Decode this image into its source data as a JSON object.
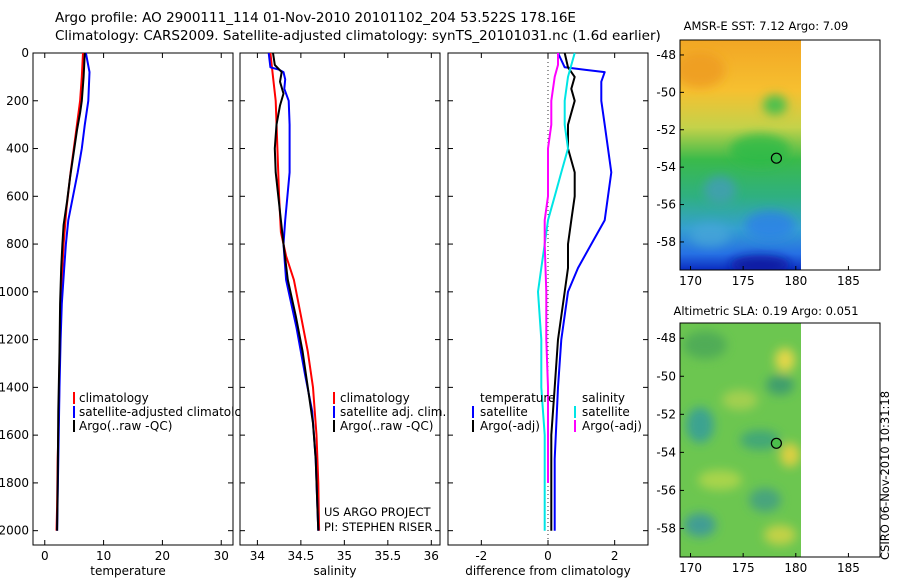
{
  "header": {
    "line1": "Argo profile: AO 2900111_114 01-Nov-2010 20101102_204 53.522S 178.16E",
    "line2": "Climatology: CARS2009. Satellite-adjusted climatology: synTS_20101031.nc (1.6d earlier)"
  },
  "credit": {
    "project": "US ARGO PROJECT",
    "pi": "PI: STEPHEN RISER"
  },
  "footer_stamp": "CSIRO 06-Nov-2010 10:31:18",
  "colors": {
    "red": "#ff0000",
    "blue": "#0000ff",
    "black": "#000000",
    "cyan": "#00e5e5",
    "magenta": "#ff00ff"
  },
  "chart_data": [
    {
      "id": "temperature",
      "type": "line",
      "xlabel": "temperature",
      "xlim": [
        -2,
        32
      ],
      "ylim": [
        2060,
        0
      ],
      "xticks": [
        0,
        10,
        20,
        30
      ],
      "yticks": [
        0,
        200,
        400,
        600,
        800,
        1000,
        1200,
        1400,
        1600,
        1800,
        2000
      ],
      "legend": {
        "placement": "lower-right",
        "entries": [
          {
            "label": "climatology",
            "color": "#ff0000"
          },
          {
            "label": "satellite-adjusted climatolog",
            "color": "#0000ff"
          },
          {
            "label": "Argo(..raw -QC)",
            "color": "#000000"
          }
        ]
      },
      "series": [
        {
          "color": "#ff0000",
          "points": [
            [
              6.5,
              0
            ],
            [
              6.3,
              100
            ],
            [
              6.0,
              200
            ],
            [
              5.2,
              350
            ],
            [
              4.4,
              500
            ],
            [
              3.7,
              650
            ],
            [
              3.2,
              800
            ],
            [
              2.9,
              950
            ],
            [
              2.7,
              1100
            ],
            [
              2.5,
              1300
            ],
            [
              2.4,
              1500
            ],
            [
              2.2,
              1700
            ],
            [
              2.1,
              1900
            ],
            [
              2.0,
              2000
            ]
          ]
        },
        {
          "color": "#0000ff",
          "points": [
            [
              7.0,
              0
            ],
            [
              7.6,
              80
            ],
            [
              7.4,
              200
            ],
            [
              6.8,
              300
            ],
            [
              6.3,
              400
            ],
            [
              5.6,
              500
            ],
            [
              4.8,
              600
            ],
            [
              4.0,
              700
            ],
            [
              3.6,
              800
            ],
            [
              3.3,
              900
            ],
            [
              2.9,
              1050
            ],
            [
              2.7,
              1200
            ],
            [
              2.5,
              1400
            ],
            [
              2.3,
              1700
            ],
            [
              2.1,
              2000
            ]
          ]
        },
        {
          "color": "#000000",
          "points": [
            [
              6.8,
              0
            ],
            [
              6.6,
              100
            ],
            [
              6.3,
              200
            ],
            [
              6.0,
              250
            ],
            [
              5.5,
              320
            ],
            [
              4.9,
              420
            ],
            [
              4.3,
              520
            ],
            [
              3.8,
              620
            ],
            [
              3.2,
              720
            ],
            [
              3.0,
              800
            ],
            [
              2.8,
              900
            ],
            [
              2.6,
              1050
            ],
            [
              2.5,
              1250
            ],
            [
              2.3,
              1500
            ],
            [
              2.2,
              1800
            ],
            [
              2.1,
              2000
            ]
          ]
        }
      ]
    },
    {
      "id": "salinity",
      "type": "line",
      "xlabel": "salinity",
      "xlim": [
        33.8,
        36.1
      ],
      "ylim": [
        2060,
        0
      ],
      "xticks": [
        34,
        34.5,
        35,
        35.5,
        36
      ],
      "yticks": [
        0,
        200,
        400,
        600,
        800,
        1000,
        1200,
        1400,
        1600,
        1800,
        2000
      ],
      "legend": {
        "placement": "lower-right",
        "entries": [
          {
            "label": "climatology",
            "color": "#ff0000"
          },
          {
            "label": "satellite adj. clim.",
            "color": "#0000ff"
          },
          {
            "label": "Argo(..raw -QC)",
            "color": "#000000"
          }
        ]
      },
      "series": [
        {
          "color": "#ff0000",
          "points": [
            [
              34.15,
              0
            ],
            [
              34.18,
              100
            ],
            [
              34.21,
              200
            ],
            [
              34.23,
              400
            ],
            [
              34.25,
              600
            ],
            [
              34.27,
              750
            ],
            [
              34.33,
              850
            ],
            [
              34.42,
              950
            ],
            [
              34.5,
              1100
            ],
            [
              34.58,
              1250
            ],
            [
              34.64,
              1400
            ],
            [
              34.68,
              1600
            ],
            [
              34.7,
              1800
            ],
            [
              34.71,
              2000
            ]
          ]
        },
        {
          "color": "#0000ff",
          "points": [
            [
              34.13,
              0
            ],
            [
              34.15,
              60
            ],
            [
              34.25,
              70
            ],
            [
              34.3,
              80
            ],
            [
              34.32,
              110
            ],
            [
              34.31,
              150
            ],
            [
              34.36,
              200
            ],
            [
              34.37,
              300
            ],
            [
              34.37,
              500
            ],
            [
              34.32,
              700
            ],
            [
              34.3,
              800
            ],
            [
              34.33,
              950
            ],
            [
              34.45,
              1150
            ],
            [
              34.55,
              1350
            ],
            [
              34.63,
              1500
            ],
            [
              34.67,
              1700
            ],
            [
              34.69,
              1900
            ],
            [
              34.7,
              2000
            ]
          ]
        },
        {
          "color": "#000000",
          "points": [
            [
              34.18,
              0
            ],
            [
              34.2,
              50
            ],
            [
              34.28,
              80
            ],
            [
              34.26,
              120
            ],
            [
              34.3,
              170
            ],
            [
              34.26,
              220
            ],
            [
              34.22,
              300
            ],
            [
              34.2,
              400
            ],
            [
              34.21,
              500
            ],
            [
              34.24,
              600
            ],
            [
              34.27,
              700
            ],
            [
              34.3,
              800
            ],
            [
              34.35,
              950
            ],
            [
              34.44,
              1100
            ],
            [
              34.52,
              1250
            ],
            [
              34.58,
              1400
            ],
            [
              34.64,
              1550
            ],
            [
              34.67,
              1700
            ],
            [
              34.69,
              1900
            ],
            [
              34.7,
              2000
            ]
          ]
        }
      ]
    },
    {
      "id": "difference",
      "type": "line",
      "xlabel": "difference from climatology",
      "xlim": [
        -3,
        3
      ],
      "ylim": [
        2060,
        0
      ],
      "xticks": [
        -2,
        0,
        2
      ],
      "yticks": [
        0,
        200,
        400,
        600,
        800,
        1000,
        1200,
        1400,
        1600,
        1800,
        2000
      ],
      "legend": {
        "placement": "lower-center",
        "columns": [
          {
            "title": "temperature",
            "entries": [
              {
                "label": "satellite",
                "color": "#0000ff"
              },
              {
                "label": "Argo(-adj)",
                "color": "#000000"
              }
            ]
          },
          {
            "title": "salinity",
            "entries": [
              {
                "label": "satellite",
                "color": "#00e5e5"
              },
              {
                "label": "Argo(-adj)",
                "color": "#ff00ff"
              }
            ]
          }
        ]
      },
      "series": [
        {
          "color": "#0000ff",
          "points": [
            [
              0.3,
              0
            ],
            [
              0.5,
              60
            ],
            [
              1.1,
              70
            ],
            [
              1.7,
              80
            ],
            [
              1.6,
              120
            ],
            [
              1.6,
              200
            ],
            [
              1.7,
              300
            ],
            [
              1.8,
              400
            ],
            [
              1.9,
              500
            ],
            [
              1.8,
              600
            ],
            [
              1.7,
              700
            ],
            [
              1.3,
              800
            ],
            [
              0.9,
              900
            ],
            [
              0.6,
              1000
            ],
            [
              0.4,
              1200
            ],
            [
              0.3,
              1400
            ],
            [
              0.2,
              1700
            ],
            [
              0.2,
              2000
            ]
          ]
        },
        {
          "color": "#000000",
          "points": [
            [
              0.5,
              0
            ],
            [
              0.6,
              60
            ],
            [
              0.8,
              100
            ],
            [
              0.7,
              150
            ],
            [
              0.8,
              200
            ],
            [
              0.6,
              300
            ],
            [
              0.6,
              400
            ],
            [
              0.8,
              500
            ],
            [
              0.8,
              600
            ],
            [
              0.7,
              700
            ],
            [
              0.6,
              800
            ],
            [
              0.6,
              900
            ],
            [
              0.5,
              1000
            ],
            [
              0.3,
              1200
            ],
            [
              0.2,
              1400
            ],
            [
              0.1,
              1600
            ],
            [
              0.1,
              1800
            ],
            [
              0.1,
              2000
            ]
          ]
        },
        {
          "color": "#00e5e5",
          "points": [
            [
              0.8,
              0
            ],
            [
              0.6,
              100
            ],
            [
              0.5,
              200
            ],
            [
              0.5,
              300
            ],
            [
              0.6,
              400
            ],
            [
              0.4,
              500
            ],
            [
              0.2,
              600
            ],
            [
              0.0,
              700
            ],
            [
              -0.1,
              800
            ],
            [
              -0.2,
              900
            ],
            [
              -0.3,
              1000
            ],
            [
              -0.2,
              1200
            ],
            [
              -0.2,
              1400
            ],
            [
              -0.1,
              1600
            ],
            [
              -0.1,
              1800
            ],
            [
              -0.1,
              2000
            ]
          ]
        },
        {
          "color": "#ff00ff",
          "points": [
            [
              0.3,
              0
            ],
            [
              0.3,
              50
            ],
            [
              0.2,
              100
            ],
            [
              0.1,
              200
            ],
            [
              0.1,
              300
            ],
            [
              0.0,
              400
            ],
            [
              0.0,
              600
            ],
            [
              -0.1,
              700
            ],
            [
              -0.1,
              800
            ],
            [
              -0.05,
              1000
            ],
            [
              -0.05,
              1200
            ],
            [
              0.0,
              1400
            ],
            [
              0.0,
              1600
            ],
            [
              0.0,
              1800
            ]
          ]
        }
      ]
    },
    {
      "id": "sst_map",
      "type": "heatmap",
      "title": "AMSR-E SST: 7.12  Argo: 7.09",
      "xlim": [
        169,
        188
      ],
      "ylim": [
        -59.5,
        -47.2
      ],
      "xticks": [
        170,
        175,
        180,
        185
      ],
      "yticks": [
        -48,
        -50,
        -52,
        -54,
        -56,
        -58
      ],
      "marker": {
        "lon": 178.16,
        "lat": -53.522
      }
    },
    {
      "id": "sla_map",
      "type": "heatmap",
      "title": "Altimetric SLA: 0.19  Argo: 0.051",
      "xlim": [
        169,
        188
      ],
      "ylim": [
        -59.5,
        -47.2
      ],
      "xticks": [
        170,
        175,
        180,
        185
      ],
      "yticks": [
        -48,
        -50,
        -52,
        -54,
        -56,
        -58
      ],
      "marker": {
        "lon": 178.16,
        "lat": -53.522
      }
    }
  ]
}
